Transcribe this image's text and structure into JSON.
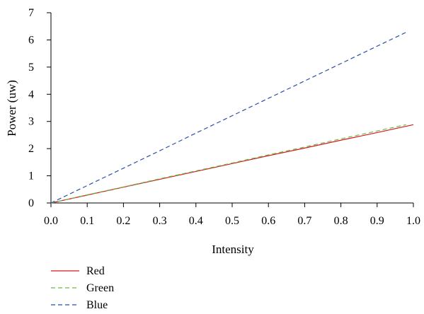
{
  "chart_data": {
    "type": "line",
    "xlabel": "Intensity",
    "ylabel": "Power (uw)",
    "xlim": [
      0.0,
      1.0
    ],
    "ylim": [
      0,
      7
    ],
    "x_ticks": [
      "0.0",
      "0.1",
      "0.2",
      "0.3",
      "0.4",
      "0.5",
      "0.6",
      "0.7",
      "0.8",
      "0.9",
      "1.0"
    ],
    "y_ticks": [
      "0",
      "1",
      "2",
      "3",
      "4",
      "5",
      "6",
      "7"
    ],
    "grid": false,
    "legend_position": "bottom-left",
    "series": [
      {
        "name": "Red",
        "color": "#d7191c",
        "dash": "solid",
        "x": [
          0.0,
          0.1,
          0.2,
          0.3,
          0.4,
          0.5,
          0.6,
          0.7,
          0.8,
          0.9,
          1.0
        ],
        "y": [
          0.0,
          0.29,
          0.58,
          0.87,
          1.16,
          1.45,
          1.74,
          2.02,
          2.31,
          2.59,
          2.88
        ]
      },
      {
        "name": "Green",
        "color": "#66bb44",
        "dash": "dashed",
        "x": [
          0.0,
          0.1,
          0.2,
          0.3,
          0.4,
          0.5,
          0.6,
          0.7,
          0.8,
          0.9,
          0.98
        ],
        "y": [
          0.0,
          0.3,
          0.59,
          0.89,
          1.18,
          1.47,
          1.77,
          2.06,
          2.36,
          2.65,
          2.88
        ]
      },
      {
        "name": "Blue",
        "color": "#2b4fa8",
        "dash": "dashed",
        "x": [
          0.0,
          0.1,
          0.2,
          0.3,
          0.4,
          0.5,
          0.6,
          0.7,
          0.8,
          0.9,
          0.98
        ],
        "y": [
          0.0,
          0.64,
          1.28,
          1.92,
          2.57,
          3.21,
          3.85,
          4.49,
          5.13,
          5.77,
          6.28
        ]
      }
    ]
  }
}
